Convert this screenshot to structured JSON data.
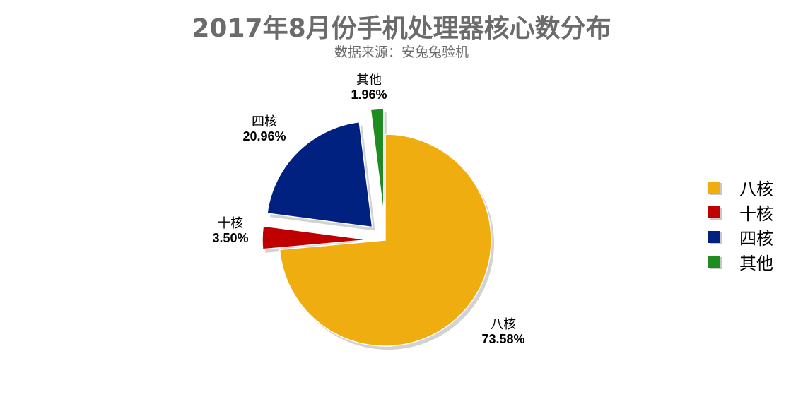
{
  "title": "2017年8月份手机处理器核心数分布",
  "subtitle": "数据来源：安兔兔验机",
  "chart_data": {
    "type": "pie",
    "title": "2017年8月份手机处理器核心数分布",
    "subtitle": "数据来源：安兔兔验机",
    "categories": [
      "八核",
      "十核",
      "四核",
      "其他"
    ],
    "values": [
      73.58,
      3.5,
      20.96,
      1.96
    ],
    "value_labels": [
      "73.58%",
      "3.50%",
      "20.96%",
      "1.96%"
    ],
    "colors": [
      "#F0AD10",
      "#C00000",
      "#002180",
      "#1E8C1E"
    ],
    "exploded": [
      false,
      true,
      true,
      true
    ],
    "legend_position": "right",
    "start": "12 o'clock",
    "direction": "clockwise"
  }
}
